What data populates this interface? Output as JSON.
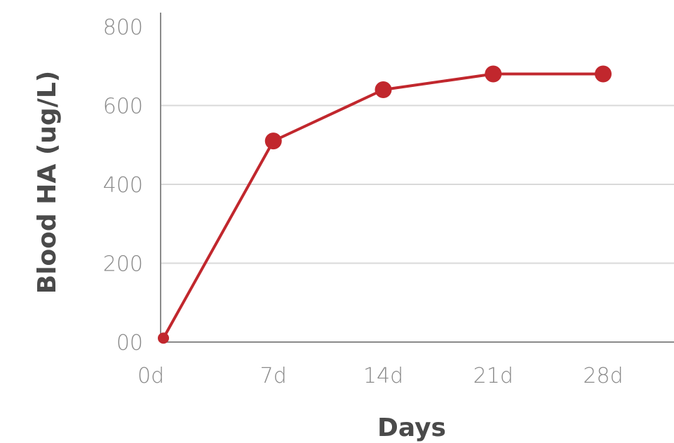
{
  "chart_data": {
    "type": "line",
    "title": "",
    "xlabel": "Days",
    "ylabel": "Blood HA (ug/L)",
    "categories": [
      "0d",
      "7d",
      "14d",
      "21d",
      "28d"
    ],
    "x_days": [
      0,
      7,
      14,
      21,
      28
    ],
    "series": [
      {
        "values": [
          10,
          510,
          640,
          680,
          680
        ],
        "color": "#c1272d"
      }
    ],
    "y_ticks": [
      0,
      200,
      400,
      600,
      800
    ],
    "y_tick_labels": [
      "00",
      "200",
      "400",
      "600",
      "800"
    ],
    "ylim": [
      0,
      800
    ],
    "xlim": [
      0,
      28
    ],
    "grid": "horizontal",
    "legend": "none"
  },
  "colors": {
    "line": "#c1272d",
    "grid": "#d9d9d9",
    "axis": "#8a8a8a",
    "tick_text": "#8a8a8a",
    "title_text": "#4a4a4a"
  }
}
